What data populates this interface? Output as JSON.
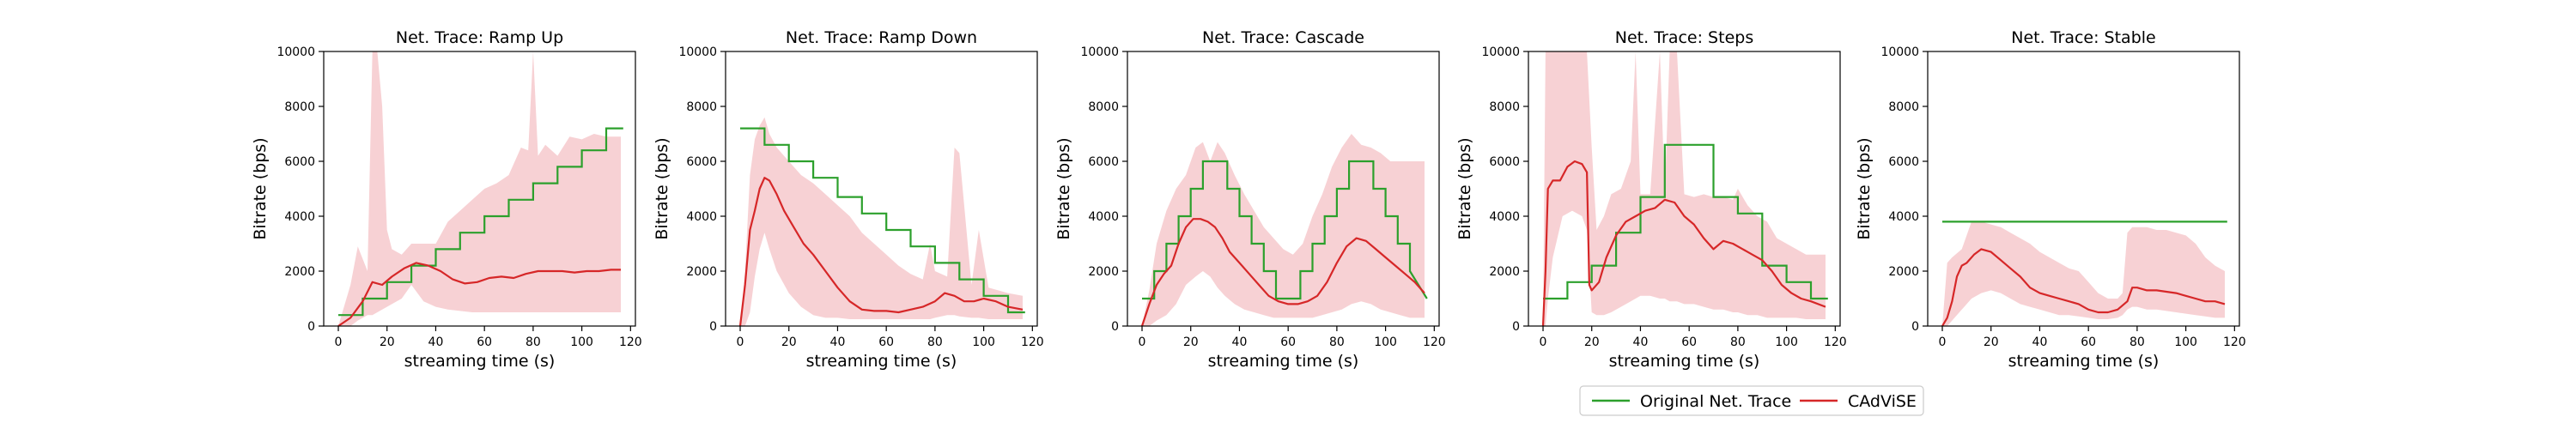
{
  "colors": {
    "original": "#2ca02c",
    "cadvise": "#d62728",
    "band": "#f2b8bd"
  },
  "legend": {
    "placement": "bottom-right",
    "entries": [
      {
        "label": "Original Net. Trace",
        "color": "#2ca02c"
      },
      {
        "label": "CAdViSE",
        "color": "#d62728"
      }
    ]
  },
  "chart_data": [
    {
      "type": "line",
      "title": "Net. Trace: Ramp Up",
      "xlabel": "streaming time (s)",
      "ylabel": "Bitrate (bps)",
      "xlim": [
        -6,
        122
      ],
      "ylim": [
        0,
        10000
      ],
      "xticks": [
        0,
        20,
        40,
        60,
        80,
        100,
        120
      ],
      "yticks": [
        0,
        2000,
        4000,
        6000,
        8000,
        10000
      ],
      "original": {
        "x": [
          0,
          10,
          10,
          20,
          20,
          30,
          30,
          40,
          40,
          50,
          50,
          60,
          60,
          70,
          70,
          80,
          80,
          90,
          90,
          100,
          100,
          110,
          110,
          117
        ],
        "y": [
          400,
          400,
          1000,
          1000,
          1600,
          1600,
          2200,
          2200,
          2800,
          2800,
          3400,
          3400,
          4000,
          4000,
          4600,
          4600,
          5200,
          5200,
          5800,
          5800,
          6400,
          6400,
          7200,
          7200
        ]
      },
      "cadvise": {
        "x": [
          0,
          5,
          10,
          14,
          18,
          22,
          27,
          32,
          37,
          42,
          47,
          52,
          57,
          62,
          67,
          72,
          77,
          82,
          87,
          92,
          97,
          102,
          107,
          112,
          116
        ],
        "y": [
          0,
          300,
          900,
          1600,
          1500,
          1800,
          2100,
          2300,
          2200,
          2000,
          1700,
          1550,
          1600,
          1750,
          1800,
          1750,
          1900,
          2000,
          2000,
          2000,
          1950,
          2000,
          2000,
          2050,
          2050
        ]
      },
      "band": {
        "x": [
          0,
          5,
          8,
          12,
          14,
          16,
          18,
          20,
          22,
          26,
          30,
          35,
          40,
          45,
          50,
          55,
          60,
          65,
          70,
          75,
          78,
          80,
          82,
          85,
          90,
          95,
          100,
          105,
          110,
          116
        ],
        "upper": [
          0,
          1500,
          2900,
          2000,
          10000,
          10000,
          8000,
          3500,
          2800,
          2600,
          3000,
          3000,
          3000,
          3800,
          4200,
          4600,
          5000,
          5200,
          5500,
          6500,
          6400,
          10000,
          6200,
          6600,
          6200,
          6900,
          6800,
          7000,
          6900,
          6900
        ],
        "lower": [
          0,
          0,
          200,
          400,
          400,
          500,
          600,
          700,
          800,
          1000,
          1500,
          900,
          700,
          600,
          550,
          500,
          500,
          500,
          500,
          500,
          500,
          500,
          500,
          500,
          500,
          500,
          500,
          500,
          500,
          500
        ]
      }
    },
    {
      "type": "line",
      "title": "Net. Trace: Ramp Down",
      "xlabel": "streaming time (s)",
      "ylabel": "Bitrate (bps)",
      "xlim": [
        -6,
        122
      ],
      "ylim": [
        0,
        10000
      ],
      "xticks": [
        0,
        20,
        40,
        60,
        80,
        100,
        120
      ],
      "yticks": [
        0,
        2000,
        4000,
        6000,
        8000,
        10000
      ],
      "original": {
        "x": [
          0,
          10,
          10,
          20,
          20,
          30,
          30,
          40,
          40,
          50,
          50,
          60,
          60,
          70,
          70,
          80,
          80,
          90,
          90,
          100,
          100,
          110,
          110,
          117
        ],
        "y": [
          7200,
          7200,
          6600,
          6600,
          6000,
          6000,
          5400,
          5400,
          4700,
          4700,
          4100,
          4100,
          3500,
          3500,
          2900,
          2900,
          2300,
          2300,
          1700,
          1700,
          1100,
          1100,
          500,
          500
        ]
      },
      "cadvise": {
        "x": [
          0,
          2,
          4,
          6,
          8,
          10,
          12,
          15,
          18,
          22,
          26,
          30,
          35,
          40,
          45,
          50,
          55,
          60,
          65,
          70,
          75,
          80,
          84,
          88,
          92,
          96,
          100,
          105,
          110,
          116
        ],
        "y": [
          0,
          1500,
          3500,
          4200,
          5000,
          5400,
          5300,
          4800,
          4200,
          3600,
          3000,
          2600,
          2000,
          1400,
          900,
          600,
          550,
          550,
          500,
          600,
          700,
          900,
          1200,
          1100,
          900,
          900,
          1000,
          900,
          700,
          600
        ]
      },
      "band": {
        "x": [
          0,
          2,
          4,
          6,
          8,
          10,
          12,
          15,
          20,
          25,
          30,
          35,
          40,
          45,
          50,
          55,
          60,
          65,
          70,
          75,
          78,
          80,
          85,
          88,
          90,
          95,
          98,
          102,
          110,
          116
        ],
        "upper": [
          0,
          2000,
          5500,
          6800,
          7300,
          7600,
          7000,
          6500,
          6000,
          5500,
          5200,
          4800,
          4400,
          4000,
          3400,
          3000,
          2600,
          2200,
          1900,
          1700,
          3000,
          2000,
          1800,
          6500,
          6300,
          1500,
          3500,
          1400,
          1200,
          1100
        ],
        "lower": [
          0,
          0,
          500,
          1800,
          2800,
          3400,
          2800,
          2000,
          1200,
          700,
          400,
          300,
          300,
          250,
          250,
          250,
          250,
          250,
          250,
          250,
          250,
          300,
          400,
          400,
          350,
          300,
          300,
          250,
          250,
          250
        ]
      }
    },
    {
      "type": "line",
      "title": "Net. Trace: Cascade",
      "xlabel": "streaming time (s)",
      "ylabel": "Bitrate (bps)",
      "xlim": [
        -6,
        122
      ],
      "ylim": [
        0,
        10000
      ],
      "xticks": [
        0,
        20,
        40,
        60,
        80,
        100,
        120
      ],
      "yticks": [
        0,
        2000,
        4000,
        6000,
        8000,
        10000
      ],
      "original": {
        "x": [
          0,
          5,
          5,
          10,
          10,
          15,
          15,
          20,
          20,
          25,
          25,
          35,
          35,
          40,
          40,
          45,
          45,
          50,
          50,
          55,
          55,
          65,
          65,
          70,
          70,
          75,
          75,
          80,
          80,
          85,
          85,
          95,
          95,
          100,
          100,
          105,
          105,
          110,
          110,
          117
        ],
        "y": [
          1000,
          1000,
          2000,
          2000,
          3000,
          3000,
          4000,
          4000,
          5000,
          5000,
          6000,
          6000,
          5000,
          5000,
          4000,
          4000,
          3000,
          3000,
          2000,
          2000,
          1000,
          1000,
          2000,
          2000,
          3000,
          3000,
          4000,
          4000,
          5000,
          5000,
          6000,
          6000,
          5000,
          5000,
          4000,
          4000,
          3000,
          3000,
          2000,
          1000
        ]
      },
      "cadvise": {
        "x": [
          0,
          3,
          6,
          9,
          12,
          15,
          18,
          21,
          24,
          27,
          30,
          33,
          36,
          40,
          44,
          48,
          52,
          56,
          60,
          64,
          68,
          72,
          76,
          80,
          84,
          88,
          92,
          96,
          100,
          104,
          108,
          112,
          116
        ],
        "y": [
          0,
          800,
          1500,
          1900,
          2200,
          3000,
          3600,
          3900,
          3900,
          3800,
          3600,
          3200,
          2700,
          2300,
          1900,
          1500,
          1100,
          900,
          800,
          800,
          900,
          1100,
          1600,
          2300,
          2900,
          3200,
          3100,
          2800,
          2500,
          2200,
          1900,
          1600,
          1200
        ]
      },
      "band": {
        "x": [
          0,
          3,
          6,
          10,
          14,
          18,
          22,
          25,
          28,
          31,
          34,
          38,
          42,
          46,
          50,
          54,
          58,
          62,
          66,
          70,
          74,
          78,
          82,
          86,
          90,
          94,
          98,
          102,
          106,
          110,
          116
        ],
        "upper": [
          0,
          1300,
          3000,
          4200,
          5000,
          5500,
          6500,
          6700,
          6000,
          6700,
          6300,
          5500,
          4800,
          4200,
          3600,
          3200,
          2800,
          2600,
          3000,
          4000,
          4800,
          5800,
          6500,
          7000,
          6600,
          6500,
          6300,
          6000,
          6000,
          6000,
          6000
        ],
        "lower": [
          0,
          0,
          200,
          400,
          800,
          1500,
          1800,
          2000,
          1800,
          1400,
          1100,
          800,
          600,
          500,
          400,
          300,
          300,
          300,
          300,
          300,
          400,
          500,
          600,
          800,
          900,
          800,
          600,
          500,
          400,
          300,
          300
        ]
      }
    },
    {
      "type": "line",
      "title": "Net. Trace: Steps",
      "xlabel": "streaming time (s)",
      "ylabel": "Bitrate (bps)",
      "xlim": [
        -6,
        122
      ],
      "ylim": [
        0,
        10000
      ],
      "xticks": [
        0,
        20,
        40,
        60,
        80,
        100,
        120
      ],
      "yticks": [
        0,
        2000,
        4000,
        6000,
        8000,
        10000
      ],
      "original": {
        "x": [
          0,
          10,
          10,
          20,
          20,
          30,
          30,
          40,
          40,
          50,
          50,
          70,
          70,
          80,
          80,
          90,
          90,
          100,
          100,
          110,
          110,
          117
        ],
        "y": [
          1000,
          1000,
          1600,
          1600,
          2200,
          2200,
          3400,
          3400,
          4700,
          4700,
          6600,
          6600,
          4700,
          4700,
          4100,
          4100,
          2200,
          2200,
          1600,
          1600,
          1000,
          1000
        ]
      },
      "cadvise": {
        "x": [
          0,
          1,
          2,
          4,
          7,
          10,
          13,
          16,
          18,
          19,
          20,
          23,
          26,
          30,
          34,
          38,
          42,
          46,
          50,
          54,
          58,
          62,
          66,
          70,
          74,
          78,
          82,
          86,
          90,
          94,
          98,
          102,
          106,
          110,
          116
        ],
        "y": [
          0,
          2000,
          5000,
          5300,
          5300,
          5800,
          6000,
          5900,
          5600,
          1500,
          1300,
          1600,
          2500,
          3300,
          3800,
          4000,
          4200,
          4300,
          4600,
          4500,
          4000,
          3700,
          3200,
          2800,
          3100,
          3000,
          2800,
          2600,
          2400,
          2000,
          1500,
          1200,
          1000,
          900,
          700
        ]
      },
      "band": {
        "x": [
          0,
          1,
          2,
          4,
          8,
          12,
          16,
          18,
          20,
          22,
          25,
          28,
          32,
          36,
          38,
          40,
          44,
          48,
          50,
          52,
          55,
          58,
          62,
          66,
          70,
          74,
          78,
          80,
          84,
          88,
          92,
          96,
          100,
          104,
          108,
          116
        ],
        "upper": [
          0,
          10000,
          10000,
          10000,
          10000,
          10000,
          10000,
          10000,
          6500,
          3500,
          4000,
          4800,
          5000,
          6000,
          10000,
          4800,
          4800,
          10000,
          4800,
          10000,
          10000,
          4800,
          4700,
          4800,
          4700,
          4700,
          4600,
          5000,
          4400,
          4000,
          3800,
          3200,
          3000,
          2800,
          2600,
          2600
        ],
        "lower": [
          0,
          0,
          1000,
          2500,
          4000,
          4200,
          4000,
          3500,
          500,
          400,
          400,
          500,
          700,
          900,
          1000,
          1100,
          1100,
          1000,
          1000,
          900,
          900,
          800,
          800,
          700,
          600,
          600,
          500,
          500,
          400,
          400,
          300,
          300,
          300,
          300,
          250,
          250
        ]
      }
    },
    {
      "type": "line",
      "title": "Net. Trace: Stable",
      "xlabel": "streaming time (s)",
      "ylabel": "Bitrate (bps)",
      "xlim": [
        -6,
        122
      ],
      "ylim": [
        0,
        10000
      ],
      "xticks": [
        0,
        20,
        40,
        60,
        80,
        100,
        120
      ],
      "yticks": [
        0,
        2000,
        4000,
        6000,
        8000,
        10000
      ],
      "original": {
        "x": [
          0,
          117
        ],
        "y": [
          3800,
          3800
        ]
      },
      "cadvise": {
        "x": [
          0,
          2,
          4,
          6,
          8,
          10,
          13,
          16,
          20,
          24,
          28,
          32,
          36,
          40,
          44,
          48,
          52,
          56,
          60,
          64,
          68,
          72,
          76,
          78,
          80,
          84,
          88,
          92,
          96,
          100,
          104,
          108,
          112,
          116
        ],
        "y": [
          0,
          300,
          900,
          1800,
          2200,
          2300,
          2600,
          2800,
          2700,
          2400,
          2100,
          1800,
          1400,
          1200,
          1100,
          1000,
          900,
          800,
          600,
          500,
          500,
          600,
          900,
          1400,
          1400,
          1300,
          1300,
          1250,
          1200,
          1100,
          1000,
          900,
          900,
          800
        ]
      },
      "band": {
        "x": [
          0,
          2,
          4,
          8,
          12,
          16,
          20,
          24,
          28,
          32,
          36,
          40,
          44,
          48,
          52,
          56,
          60,
          64,
          68,
          72,
          74,
          76,
          78,
          80,
          84,
          88,
          92,
          96,
          100,
          104,
          108,
          112,
          116
        ],
        "upper": [
          0,
          2300,
          2500,
          2800,
          3800,
          3800,
          3700,
          3600,
          3400,
          3200,
          3000,
          2700,
          2500,
          2300,
          2100,
          2000,
          1600,
          1200,
          1000,
          1000,
          1200,
          3400,
          3600,
          3600,
          3600,
          3500,
          3500,
          3400,
          3300,
          3000,
          2500,
          2200,
          2000
        ],
        "lower": [
          0,
          0,
          200,
          600,
          1000,
          1200,
          1300,
          1200,
          1000,
          800,
          700,
          600,
          500,
          400,
          400,
          350,
          300,
          250,
          250,
          300,
          400,
          600,
          700,
          700,
          600,
          600,
          550,
          500,
          450,
          400,
          350,
          300,
          300
        ]
      }
    }
  ]
}
